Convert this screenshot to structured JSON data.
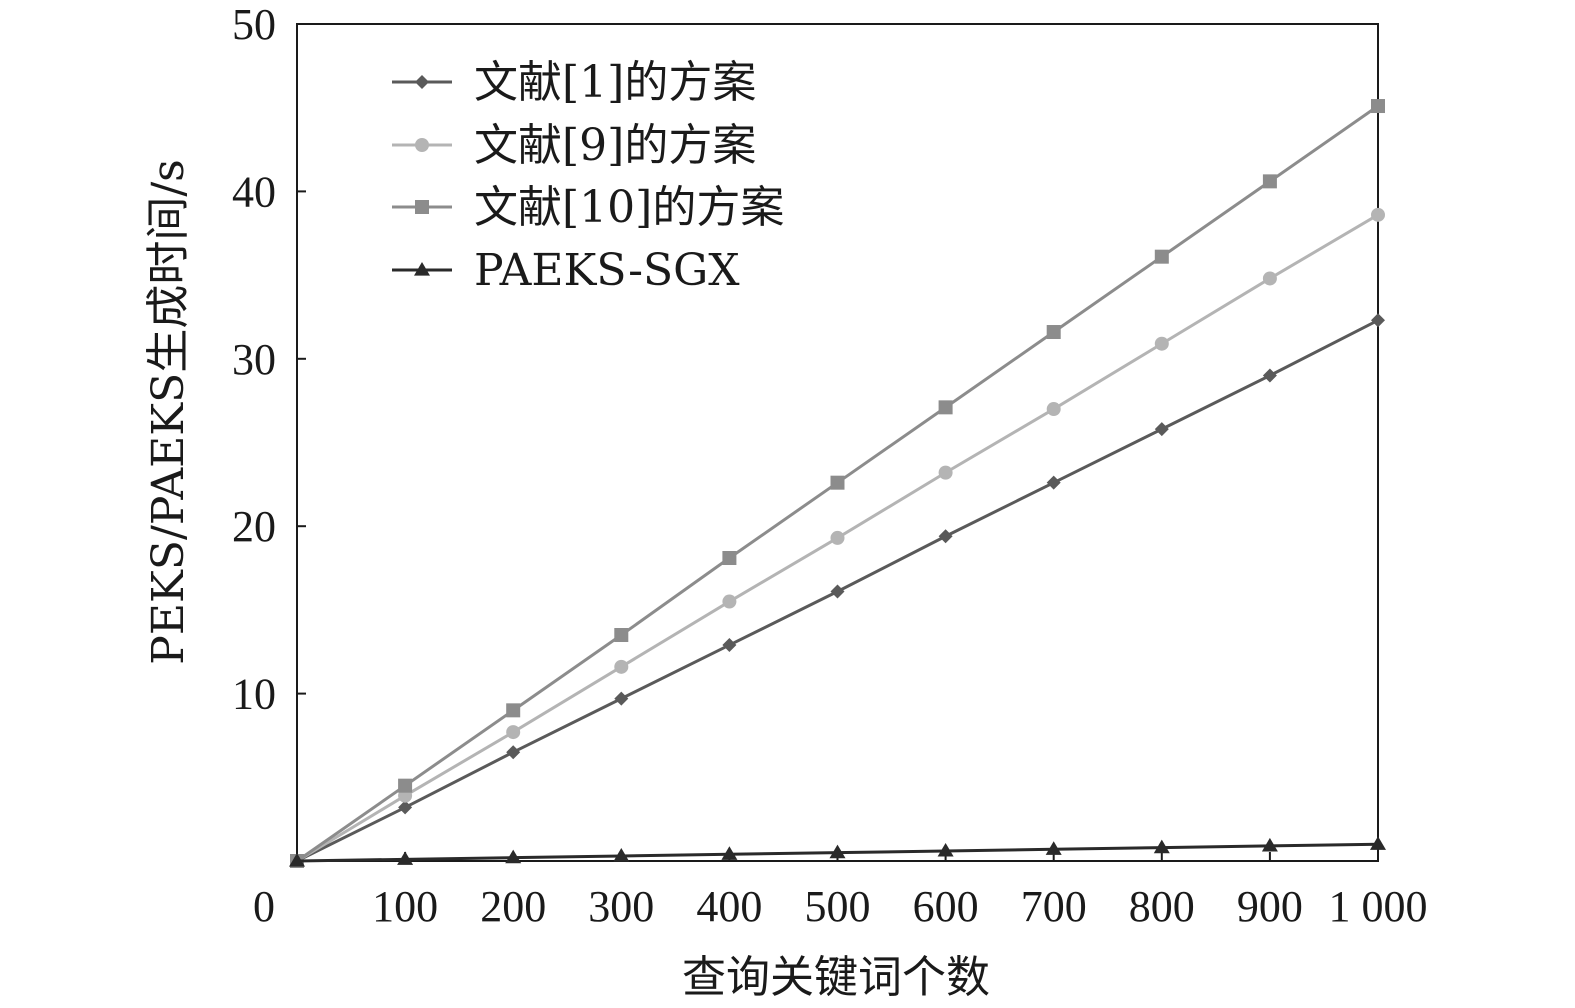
{
  "chart_data": {
    "type": "line",
    "title": "",
    "xlabel": "查询关键词个数",
    "ylabel": "PEKS/PAEKS生成时间/s",
    "x": [
      0,
      100,
      200,
      300,
      400,
      500,
      600,
      700,
      800,
      900,
      1000
    ],
    "x_tick_labels": [
      "0",
      "100",
      "200",
      "300",
      "400",
      "500",
      "600",
      "700",
      "800",
      "900",
      "1 000"
    ],
    "y_ticks": [
      10,
      20,
      30,
      40,
      50
    ],
    "y_tick_labels": [
      "10",
      "20",
      "30",
      "40",
      "50"
    ],
    "xlim": [
      0,
      1000
    ],
    "ylim": [
      0,
      50
    ],
    "grid": false,
    "legend_position": "top-left",
    "series": [
      {
        "name": "文献[1]的方案",
        "marker": "diamond",
        "color": "#5a5a5a",
        "values": [
          0,
          3.2,
          6.5,
          9.7,
          12.9,
          16.1,
          19.4,
          22.6,
          25.8,
          29.0,
          32.3
        ]
      },
      {
        "name": "文献[9]的方案",
        "marker": "circle",
        "color": "#b4b4b4",
        "values": [
          0,
          3.9,
          7.7,
          11.6,
          15.5,
          19.3,
          23.2,
          27.0,
          30.9,
          34.8,
          38.6
        ]
      },
      {
        "name": "文献[10]的方案",
        "marker": "square",
        "color": "#8c8c8c",
        "values": [
          0,
          4.5,
          9.0,
          13.5,
          18.1,
          22.6,
          27.1,
          31.6,
          36.1,
          40.6,
          45.1
        ]
      },
      {
        "name": "PAEKS-SGX",
        "marker": "triangle",
        "color": "#2a2a2a",
        "values": [
          0,
          0.1,
          0.2,
          0.3,
          0.4,
          0.5,
          0.6,
          0.7,
          0.8,
          0.9,
          1.0
        ]
      }
    ]
  }
}
